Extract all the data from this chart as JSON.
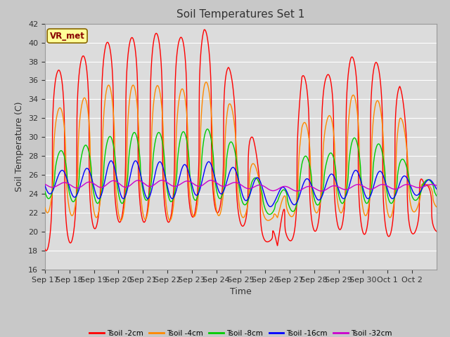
{
  "title": "Soil Temperatures Set 1",
  "xlabel": "Time",
  "ylabel": "Soil Temperature (C)",
  "ylim": [
    16,
    42
  ],
  "yticks": [
    16,
    18,
    20,
    22,
    24,
    26,
    28,
    30,
    32,
    34,
    36,
    38,
    40,
    42
  ],
  "xlabels": [
    "Sep 17",
    "Sep 18",
    "Sep 19",
    "Sep 20",
    "Sep 21",
    "Sep 22",
    "Sep 23",
    "Sep 24",
    "Sep 25",
    "Sep 26",
    "Sep 27",
    "Sep 28",
    "Sep 29",
    "Sep 30",
    "Oct 1",
    "Oct 2"
  ],
  "legend_labels": [
    "Tsoil -2cm",
    "Tsoil -4cm",
    "Tsoil -8cm",
    "Tsoil -16cm",
    "Tsoil -32cm"
  ],
  "colors": [
    "#ff0000",
    "#ff8800",
    "#00cc00",
    "#0000ff",
    "#cc00cc"
  ],
  "annotation_text": "VR_met",
  "annotation_bg": "#ffff99",
  "annotation_edge": "#886600",
  "fig_bg": "#c8c8c8",
  "plot_bg": "#dcdcdc",
  "grid_color": "#ffffff",
  "title_fontsize": 11,
  "label_fontsize": 9,
  "tick_fontsize": 8
}
